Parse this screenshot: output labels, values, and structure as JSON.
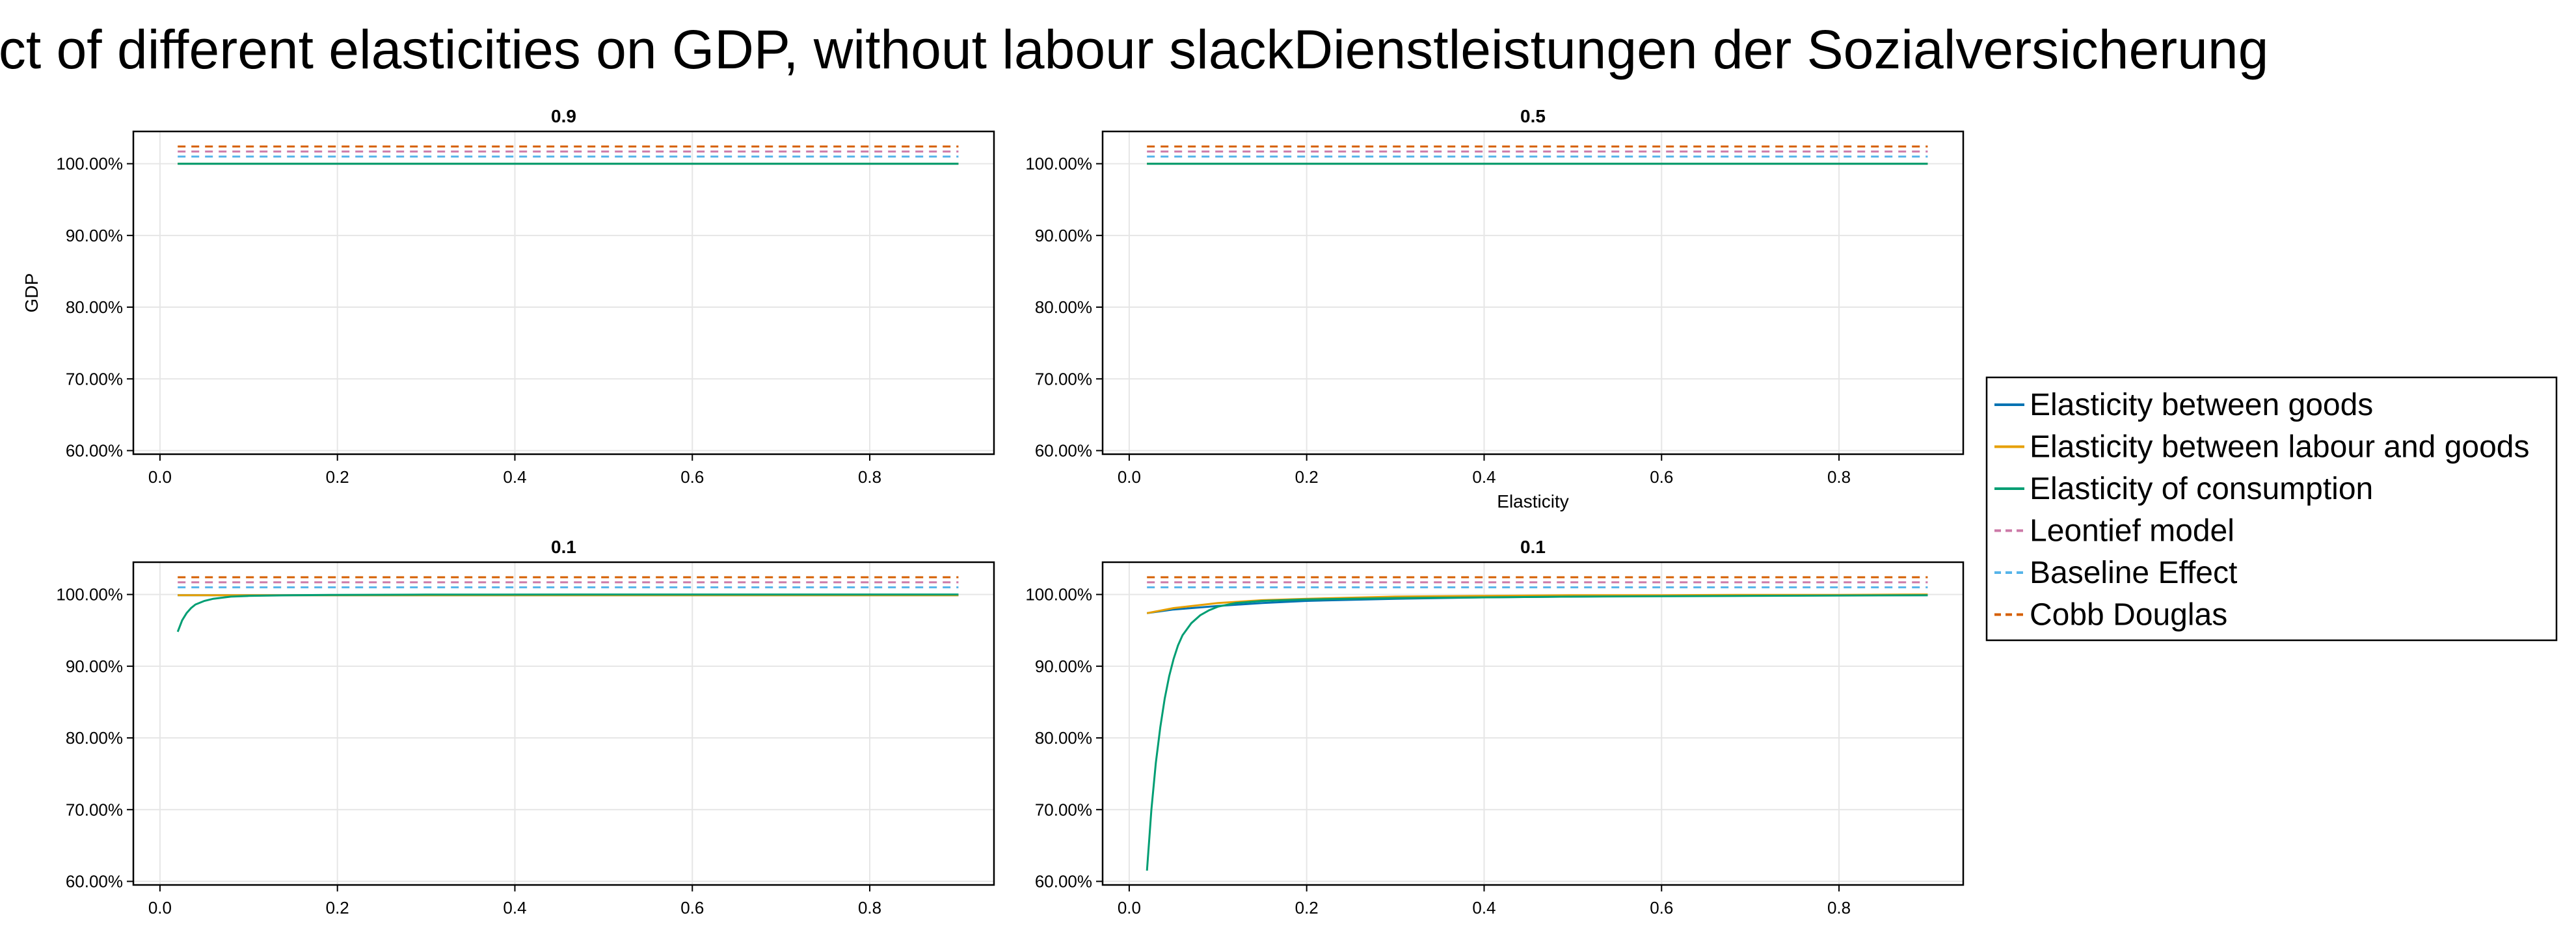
{
  "chart_data": {
    "type": "line",
    "title": "Effect of different elasticities on GDP, without labour slackDienstleistungen der Sozialversicherung",
    "ylabel": "GDP",
    "xlabel": "Elasticity",
    "xlim": [
      -0.03,
      0.94
    ],
    "ylim": [
      59.5,
      104.5
    ],
    "xticks": [
      "0.0",
      "0.2",
      "0.4",
      "0.6",
      "0.8"
    ],
    "xtick_values": [
      0,
      0.2,
      0.4,
      0.6,
      0.8
    ],
    "yticks": [
      "60.00%",
      "70.00%",
      "80.00%",
      "90.00%",
      "100.00%"
    ],
    "ytick_values": [
      60,
      70,
      80,
      90,
      100
    ],
    "grid": true,
    "legend_position": "right",
    "colors": {
      "goods": "#0072B2",
      "labour_goods": "#E69F00",
      "consumption": "#009E73",
      "leontief": "#CC79A7",
      "baseline": "#56B4E9",
      "cobb": "#D55E00"
    },
    "legend": [
      {
        "key": "goods",
        "label": "Elasticity between goods",
        "dashed": false
      },
      {
        "key": "labour_goods",
        "label": "Elasticity between labour and goods",
        "dashed": false
      },
      {
        "key": "consumption",
        "label": "Elasticity of consumption",
        "dashed": false
      },
      {
        "key": "leontief",
        "label": "Leontief model",
        "dashed": true
      },
      {
        "key": "baseline",
        "label": "Baseline Effect",
        "dashed": true
      },
      {
        "key": "cobb",
        "label": "Cobb Douglas",
        "dashed": true
      }
    ],
    "panels": [
      {
        "title": "0.9",
        "show_ylabel": true,
        "show_xlabel": false,
        "series": [
          {
            "key": "cobb",
            "x": [
              0.02,
              0.9
            ],
            "y": [
              102.4,
              102.4
            ]
          },
          {
            "key": "leontief",
            "x": [
              0.02,
              0.9
            ],
            "y": [
              101.7,
              101.7
            ]
          },
          {
            "key": "baseline",
            "x": [
              0.02,
              0.9
            ],
            "y": [
              101.0,
              101.0
            ]
          },
          {
            "key": "goods",
            "x": [
              0.02,
              0.9
            ],
            "y": [
              100.0,
              100.0
            ]
          },
          {
            "key": "labour_goods",
            "x": [
              0.02,
              0.9
            ],
            "y": [
              100.0,
              100.0
            ]
          },
          {
            "key": "consumption",
            "x": [
              0.02,
              0.9
            ],
            "y": [
              100.0,
              100.0
            ]
          }
        ]
      },
      {
        "title": "0.5",
        "show_ylabel": false,
        "show_xlabel": true,
        "series": [
          {
            "key": "cobb",
            "x": [
              0.02,
              0.9
            ],
            "y": [
              102.4,
              102.4
            ]
          },
          {
            "key": "leontief",
            "x": [
              0.02,
              0.9
            ],
            "y": [
              101.7,
              101.7
            ]
          },
          {
            "key": "baseline",
            "x": [
              0.02,
              0.9
            ],
            "y": [
              101.0,
              101.0
            ]
          },
          {
            "key": "goods",
            "x": [
              0.02,
              0.9
            ],
            "y": [
              100.0,
              100.0
            ]
          },
          {
            "key": "labour_goods",
            "x": [
              0.02,
              0.9
            ],
            "y": [
              100.0,
              100.0
            ]
          },
          {
            "key": "consumption",
            "x": [
              0.02,
              0.9
            ],
            "y": [
              100.0,
              100.0
            ]
          }
        ]
      },
      {
        "title": "0.1",
        "show_ylabel": false,
        "show_xlabel": false,
        "series": [
          {
            "key": "cobb",
            "x": [
              0.02,
              0.9
            ],
            "y": [
              102.4,
              102.4
            ]
          },
          {
            "key": "leontief",
            "x": [
              0.02,
              0.9
            ],
            "y": [
              101.7,
              101.7
            ]
          },
          {
            "key": "baseline",
            "x": [
              0.02,
              0.9
            ],
            "y": [
              101.0,
              101.0
            ]
          },
          {
            "key": "goods",
            "x": [
              0.02,
              0.9
            ],
            "y": [
              99.9,
              99.9
            ]
          },
          {
            "key": "labour_goods",
            "x": [
              0.02,
              0.9
            ],
            "y": [
              99.9,
              99.9
            ]
          },
          {
            "key": "consumption",
            "x": [
              0.02,
              0.025,
              0.03,
              0.035,
              0.04,
              0.05,
              0.06,
              0.08,
              0.1,
              0.15,
              0.2,
              0.3,
              0.5,
              0.7,
              0.9
            ],
            "y": [
              94.8,
              96.4,
              97.4,
              98.1,
              98.6,
              99.1,
              99.4,
              99.7,
              99.8,
              99.9,
              99.95,
              99.98,
              100.0,
              100.0,
              100.0
            ]
          }
        ]
      },
      {
        "title": "0.1",
        "show_ylabel": false,
        "show_xlabel": false,
        "series": [
          {
            "key": "cobb",
            "x": [
              0.02,
              0.9
            ],
            "y": [
              102.4,
              102.4
            ]
          },
          {
            "key": "leontief",
            "x": [
              0.02,
              0.9
            ],
            "y": [
              101.7,
              101.7
            ]
          },
          {
            "key": "baseline",
            "x": [
              0.02,
              0.9
            ],
            "y": [
              101.0,
              101.0
            ]
          },
          {
            "key": "goods",
            "x": [
              0.02,
              0.05,
              0.1,
              0.15,
              0.2,
              0.3,
              0.4,
              0.5,
              0.6,
              0.7,
              0.8,
              0.9
            ],
            "y": [
              97.4,
              97.9,
              98.4,
              98.8,
              99.1,
              99.4,
              99.6,
              99.7,
              99.8,
              99.85,
              99.9,
              99.9
            ]
          },
          {
            "key": "labour_goods",
            "x": [
              0.02,
              0.05,
              0.1,
              0.15,
              0.2,
              0.3,
              0.4,
              0.5,
              0.6,
              0.7,
              0.8,
              0.9
            ],
            "y": [
              97.4,
              98.1,
              98.8,
              99.2,
              99.4,
              99.7,
              99.8,
              99.9,
              99.9,
              99.95,
              99.95,
              100.0
            ]
          },
          {
            "key": "consumption",
            "x": [
              0.02,
              0.025,
              0.03,
              0.035,
              0.04,
              0.045,
              0.05,
              0.055,
              0.06,
              0.07,
              0.08,
              0.09,
              0.1,
              0.12,
              0.15,
              0.2,
              0.3,
              0.5,
              0.7,
              0.9
            ],
            "y": [
              61.5,
              70.0,
              76.5,
              81.5,
              85.5,
              88.6,
              91.0,
              92.9,
              94.3,
              96.0,
              97.1,
              97.8,
              98.3,
              98.8,
              99.1,
              99.3,
              99.5,
              99.7,
              99.8,
              99.9
            ]
          }
        ]
      }
    ]
  }
}
